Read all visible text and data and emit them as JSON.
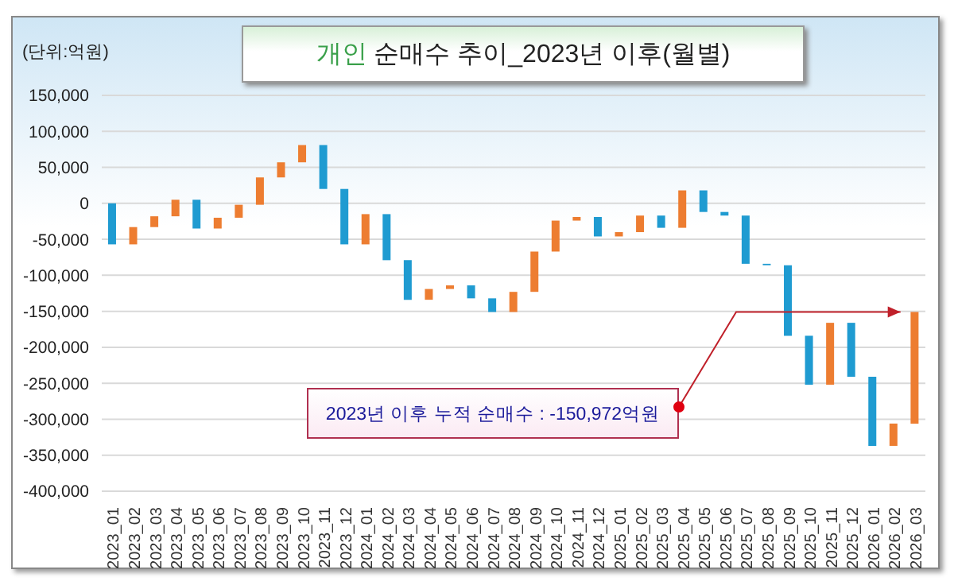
{
  "chart_data": {
    "type": "bar",
    "title": "개인 순매수 추이_2023년 이후(월별)",
    "ylabel": "(단위:억원)",
    "categories": [
      "2023_01",
      "2023_02",
      "2023_03",
      "2023_04",
      "2023_05",
      "2023_06",
      "2023_07",
      "2023_08",
      "2023_09",
      "2023_10",
      "2023_11",
      "2023_12",
      "2024_01",
      "2024_02",
      "2024_03",
      "2024_04",
      "2024_05",
      "2024_06",
      "2024_07",
      "2024_08",
      "2024_09",
      "2024_10",
      "2024_11",
      "2024_12",
      "2025_01",
      "2025_02",
      "2025_03",
      "2025_04",
      "2025_05",
      "2025_06",
      "2025_07",
      "2025_08",
      "2025_09",
      "2025_10",
      "2025_11",
      "2025_12",
      "2026_01",
      "2026_02",
      "2026_03"
    ],
    "base": [
      0,
      -57000,
      -33000,
      -18000,
      5000,
      -35000,
      -20000,
      -2000,
      36000,
      57000,
      81000,
      20000,
      -57000,
      -15000,
      -79000,
      -134000,
      -119000,
      -114000,
      -132000,
      -151000,
      -123000,
      -67000,
      -24000,
      -19000,
      -46000,
      -40000,
      -17000,
      -34000,
      18000,
      -12000,
      -17000,
      -84000,
      -86000,
      -184000,
      -252000,
      -166000,
      -241000,
      -337000,
      -306000
    ],
    "values": [
      -57000,
      24000,
      15000,
      23000,
      -40000,
      15000,
      18000,
      38000,
      21000,
      24000,
      -61000,
      -77000,
      42000,
      -64000,
      -55000,
      15000,
      5000,
      -18000,
      -19000,
      28000,
      56000,
      43000,
      5000,
      -27000,
      6000,
      23000,
      -17000,
      52000,
      -30000,
      -5000,
      -67000,
      -2000,
      -98000,
      -68000,
      86000,
      -75000,
      -96000,
      31000,
      155000
    ],
    "colors": [
      "#1f9bd1",
      "#ed7d31",
      "#ed7d31",
      "#ed7d31",
      "#1f9bd1",
      "#ed7d31",
      "#ed7d31",
      "#ed7d31",
      "#ed7d31",
      "#ed7d31",
      "#1f9bd1",
      "#1f9bd1",
      "#ed7d31",
      "#1f9bd1",
      "#1f9bd1",
      "#ed7d31",
      "#ed7d31",
      "#1f9bd1",
      "#1f9bd1",
      "#ed7d31",
      "#ed7d31",
      "#ed7d31",
      "#ed7d31",
      "#1f9bd1",
      "#ed7d31",
      "#ed7d31",
      "#1f9bd1",
      "#ed7d31",
      "#1f9bd1",
      "#1f9bd1",
      "#1f9bd1",
      "#1f9bd1",
      "#1f9bd1",
      "#1f9bd1",
      "#ed7d31",
      "#1f9bd1",
      "#1f9bd1",
      "#ed7d31",
      "#ed7d31"
    ],
    "ylim": [
      -400000,
      150000
    ],
    "yticks": [
      {
        "value": -400000,
        "label": "-400,000"
      },
      {
        "value": -350000,
        "label": "-350,000"
      },
      {
        "value": -300000,
        "label": "-300,000"
      },
      {
        "value": -250000,
        "label": "-250,000"
      },
      {
        "value": -200000,
        "label": "-200,000"
      },
      {
        "value": -150000,
        "label": "-150,000"
      },
      {
        "value": -100000,
        "label": "-100,000"
      },
      {
        "value": -50000,
        "label": "-50,000"
      },
      0,
      {
        "value": 50000,
        "label": "50,000"
      },
      {
        "value": 100000,
        "label": "100,000"
      },
      {
        "value": 150000,
        "label": "150,000"
      }
    ],
    "grid": "y",
    "annotations": [
      "2023년 이후 누적 순매수 : -150,972억원"
    ]
  }
}
